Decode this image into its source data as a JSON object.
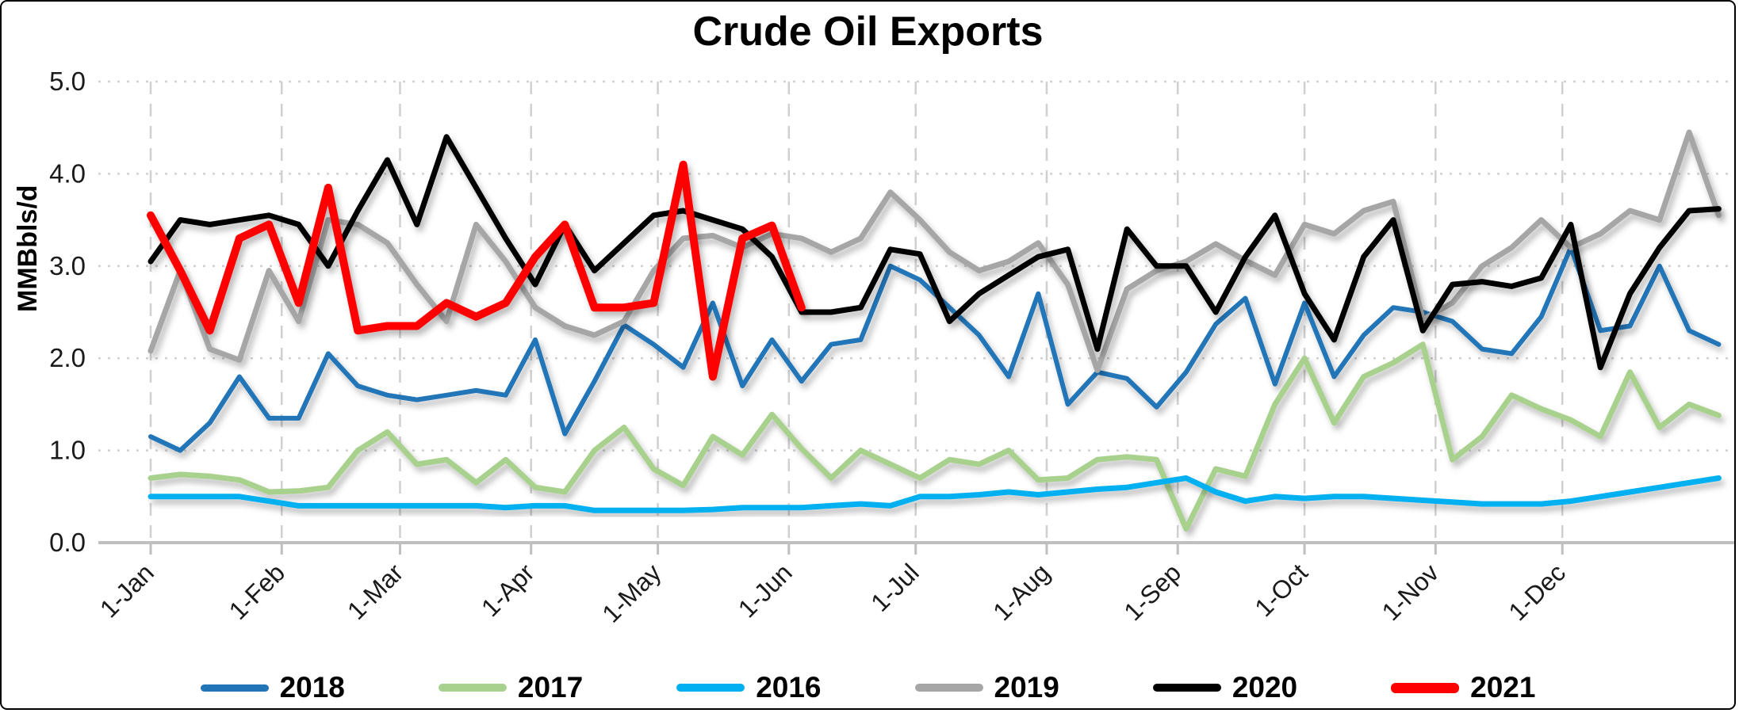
{
  "title": "Crude Oil Exports",
  "y_axis": {
    "title": "MMBbls/d",
    "tick_labels": [
      "0.0",
      "1.0",
      "2.0",
      "3.0",
      "4.0",
      "5.0"
    ],
    "min": 0,
    "max": 5
  },
  "x_axis": {
    "tick_labels": [
      "1-Jan",
      "1-Feb",
      "1-Mar",
      "1-Apr",
      "1-May",
      "1-Jun",
      "1-Jul",
      "1-Aug",
      "1-Sep",
      "1-Oct",
      "1-Nov",
      "1-Dec"
    ],
    "tick_days": [
      1,
      32,
      60,
      91,
      121,
      152,
      182,
      213,
      244,
      274,
      305,
      335
    ]
  },
  "legend": [
    "2018",
    "2017",
    "2016",
    "2019",
    "2020",
    "2021"
  ],
  "chart_data": {
    "type": "line",
    "title": "Crude Oil Exports",
    "xlabel": "",
    "ylabel": "MMBbls/d",
    "ylim": [
      0,
      5
    ],
    "grid": true,
    "legend_position": "bottom",
    "x_description": "weekly data points, one per 7 days starting Jan 1",
    "x_tick_labels": [
      "1-Jan",
      "1-Feb",
      "1-Mar",
      "1-Apr",
      "1-May",
      "1-Jun",
      "1-Jul",
      "1-Aug",
      "1-Sep",
      "1-Oct",
      "1-Nov",
      "1-Dec"
    ],
    "series": [
      {
        "name": "2018",
        "color": "#2074B7",
        "width": 6,
        "values": [
          1.15,
          1.0,
          1.3,
          1.8,
          1.35,
          1.35,
          2.05,
          1.7,
          1.6,
          1.55,
          1.6,
          1.65,
          1.6,
          2.2,
          1.18,
          1.75,
          2.36,
          2.15,
          1.9,
          2.6,
          1.7,
          2.2,
          1.75,
          2.15,
          2.2,
          3.0,
          2.85,
          2.55,
          2.25,
          1.8,
          2.7,
          1.5,
          1.85,
          1.78,
          1.47,
          1.85,
          2.37,
          2.65,
          1.72,
          2.6,
          1.8,
          2.25,
          2.55,
          2.5,
          2.4,
          2.1,
          2.05,
          2.45,
          3.2,
          2.3,
          2.35,
          3.0,
          2.3,
          2.15
        ]
      },
      {
        "name": "2017",
        "color": "#A9D18E",
        "width": 7,
        "values": [
          0.7,
          0.74,
          0.72,
          0.68,
          0.55,
          0.56,
          0.6,
          1.0,
          1.2,
          0.85,
          0.9,
          0.65,
          0.9,
          0.6,
          0.55,
          1.0,
          1.25,
          0.8,
          0.62,
          1.15,
          0.95,
          1.39,
          1.02,
          0.7,
          1.0,
          0.85,
          0.7,
          0.9,
          0.85,
          1.0,
          0.68,
          0.7,
          0.9,
          0.93,
          0.9,
          0.15,
          0.8,
          0.72,
          1.5,
          2.0,
          1.3,
          1.8,
          1.95,
          2.15,
          0.9,
          1.15,
          1.6,
          1.45,
          1.33,
          1.15,
          1.85,
          1.25,
          1.5,
          1.38
        ]
      },
      {
        "name": "2016",
        "color": "#00B0F0",
        "width": 7,
        "values": [
          0.5,
          0.5,
          0.5,
          0.5,
          0.45,
          0.4,
          0.4,
          0.4,
          0.4,
          0.4,
          0.4,
          0.4,
          0.38,
          0.4,
          0.4,
          0.35,
          0.35,
          0.35,
          0.35,
          0.36,
          0.38,
          0.38,
          0.38,
          0.4,
          0.42,
          0.4,
          0.5,
          0.5,
          0.52,
          0.55,
          0.52,
          0.55,
          0.58,
          0.6,
          0.65,
          0.7,
          0.55,
          0.45,
          0.5,
          0.48,
          0.5,
          0.5,
          0.48,
          0.46,
          0.44,
          0.42,
          0.42,
          0.42,
          0.45,
          0.5,
          0.55,
          0.6,
          0.65,
          0.7
        ]
      },
      {
        "name": "2019",
        "color": "#A6A6A6",
        "width": 7,
        "values": [
          2.08,
          2.95,
          2.1,
          1.98,
          2.95,
          2.4,
          3.5,
          3.45,
          3.25,
          2.8,
          2.4,
          3.45,
          3.05,
          2.55,
          2.35,
          2.25,
          2.4,
          2.95,
          3.3,
          3.33,
          3.2,
          3.35,
          3.3,
          3.15,
          3.3,
          3.8,
          3.5,
          3.15,
          2.95,
          3.05,
          3.25,
          2.8,
          1.87,
          2.75,
          2.95,
          3.05,
          3.24,
          3.06,
          2.9,
          3.45,
          3.35,
          3.6,
          3.7,
          2.42,
          2.6,
          3.0,
          3.2,
          3.5,
          3.2,
          3.35,
          3.6,
          3.5,
          4.45,
          3.55
        ]
      },
      {
        "name": "2020",
        "color": "#000000",
        "width": 7,
        "values": [
          3.05,
          3.5,
          3.45,
          3.5,
          3.55,
          3.45,
          3.0,
          3.6,
          4.15,
          3.45,
          4.4,
          3.85,
          3.3,
          2.8,
          3.45,
          2.95,
          3.25,
          3.55,
          3.6,
          3.5,
          3.4,
          3.1,
          2.5,
          2.5,
          2.55,
          3.18,
          3.13,
          2.4,
          2.7,
          2.9,
          3.1,
          3.18,
          2.1,
          3.4,
          3.0,
          3.0,
          2.5,
          3.1,
          3.55,
          2.7,
          2.2,
          3.1,
          3.5,
          2.3,
          2.8,
          2.83,
          2.78,
          2.87,
          3.45,
          1.9,
          2.7,
          3.2,
          3.6,
          3.62
        ]
      },
      {
        "name": "2021",
        "color": "#FF0000",
        "width": 10,
        "values": [
          3.55,
          2.95,
          2.3,
          3.3,
          3.45,
          2.6,
          3.85,
          2.3,
          2.35,
          2.35,
          2.6,
          2.45,
          2.6,
          3.1,
          3.45,
          2.55,
          2.55,
          2.6,
          4.1,
          1.8,
          3.3,
          3.44,
          2.55
        ]
      }
    ]
  },
  "colors": {
    "gridline": "#D0D0D0",
    "axis_line": "#BFBFBF",
    "tick_text": "#1a1a1a"
  }
}
